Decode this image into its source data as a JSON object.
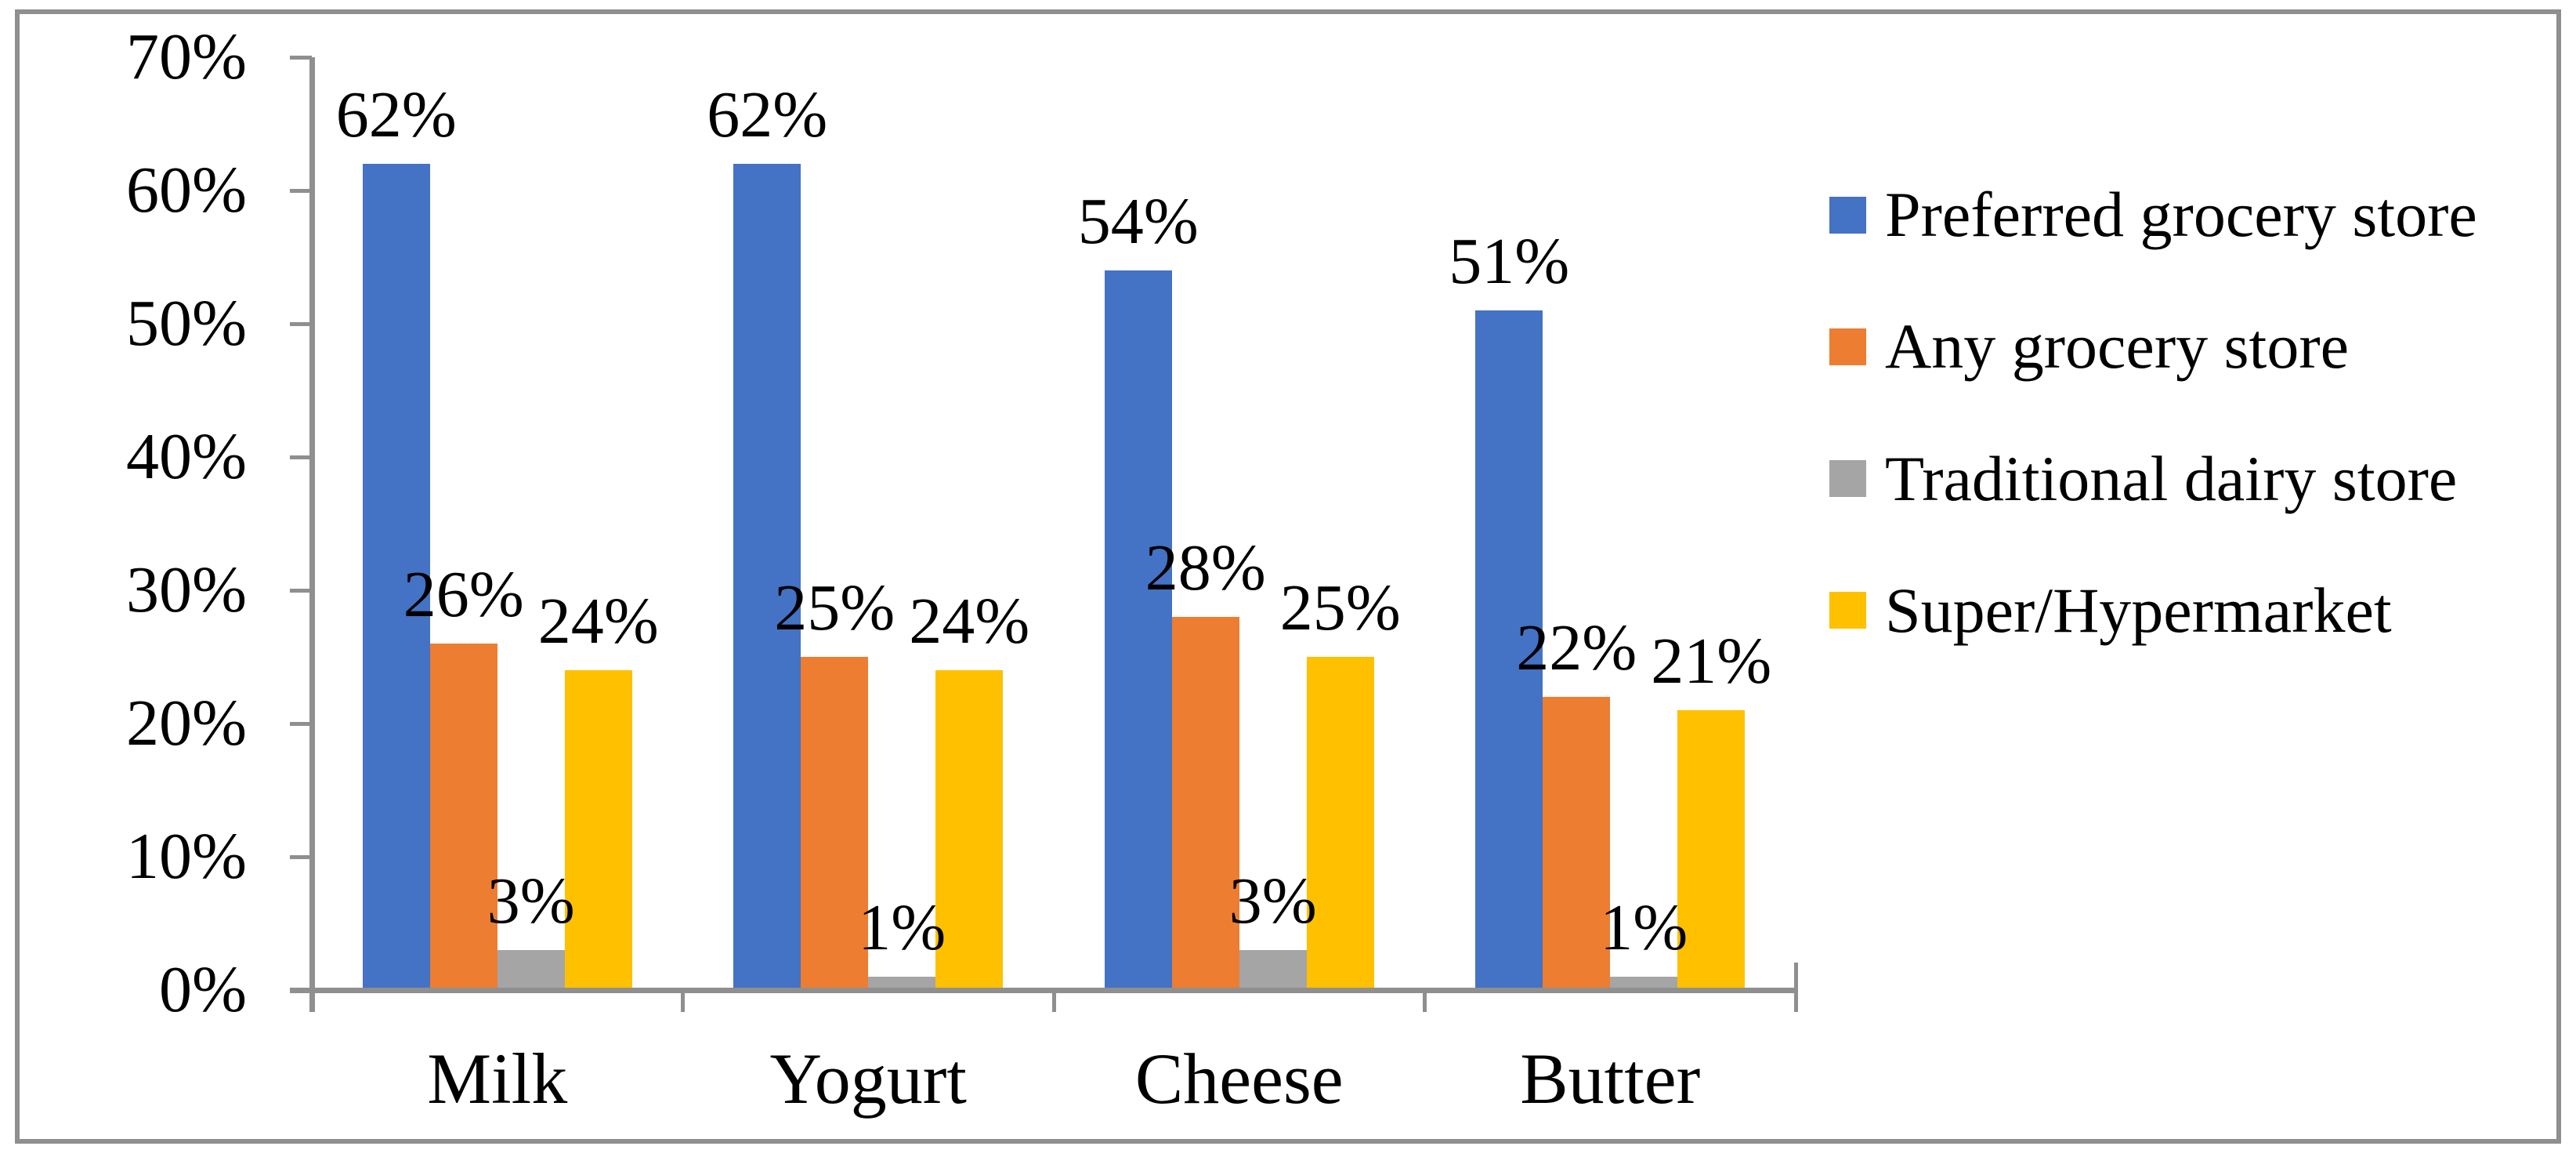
{
  "chart_data": {
    "type": "bar",
    "title": "",
    "categories": [
      "Milk",
      "Yogurt",
      "Cheese",
      "Butter"
    ],
    "series": [
      {
        "name": "Preferred grocery store",
        "color": "#4472C4",
        "values": [
          62,
          62,
          54,
          51
        ]
      },
      {
        "name": "Any grocery store",
        "color": "#ED7D31",
        "values": [
          26,
          25,
          28,
          22
        ]
      },
      {
        "name": "Traditional dairy store",
        "color": "#A5A5A5",
        "values": [
          3,
          1,
          3,
          1
        ]
      },
      {
        "name": "Super/Hypermarket",
        "color": "#FFC000",
        "values": [
          24,
          24,
          25,
          21
        ]
      }
    ],
    "data_labels": [
      [
        "62%",
        "62%",
        "54%",
        "51%"
      ],
      [
        "26%",
        "25%",
        "28%",
        "22%"
      ],
      [
        "3%",
        "1%",
        "3%",
        "1%"
      ],
      [
        "24%",
        "24%",
        "25%",
        "21%"
      ]
    ],
    "data_label_format": "{value}%",
    "y_axis": {
      "min": 0,
      "max": 70,
      "step": 10,
      "tick_labels": [
        "0%",
        "10%",
        "20%",
        "30%",
        "40%",
        "50%",
        "60%",
        "70%"
      ],
      "format": "percent"
    },
    "x_axis": {
      "tick_labels": [
        "Milk",
        "Yogurt",
        "Cheese",
        "Butter"
      ]
    },
    "legend": {
      "position": "right",
      "entries": [
        "Preferred grocery store",
        "Any grocery store",
        "Traditional dairy store",
        "Super/Hypermarket"
      ]
    },
    "grid": false,
    "colors": {
      "axis": "#8f8f8f",
      "border": "#8f8f8f",
      "text": "#000000",
      "background": "#ffffff"
    }
  }
}
